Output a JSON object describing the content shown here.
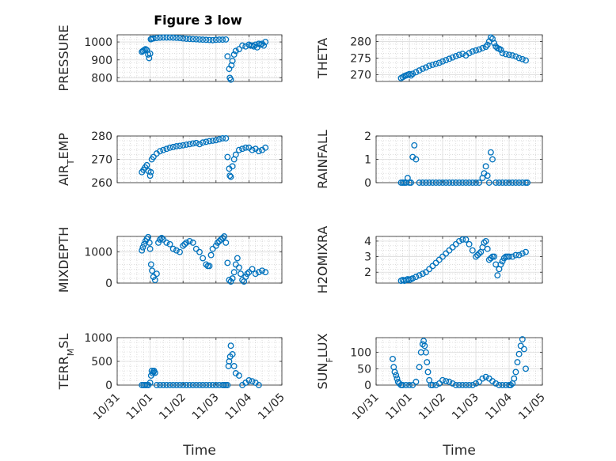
{
  "chart_data": [
    {
      "type": "scatter",
      "title": "Figure 3 low",
      "ylabel": "PRESSURE",
      "xlabel": "",
      "xlim": [
        0,
        5
      ],
      "ylim": [
        780,
        1040
      ],
      "yticks": [
        800,
        900,
        1000
      ],
      "ytick_labels": [
        "800",
        "900",
        "1000"
      ],
      "xticks": [
        0,
        1,
        2,
        3,
        4,
        5
      ],
      "grid": true,
      "x": [
        0.75,
        0.78,
        0.82,
        0.86,
        0.9,
        0.94,
        0.97,
        1.0,
        1.02,
        1.05,
        1.1,
        1.2,
        1.3,
        1.4,
        1.5,
        1.6,
        1.7,
        1.8,
        1.9,
        2.0,
        2.1,
        2.2,
        2.3,
        2.4,
        2.5,
        2.6,
        2.7,
        2.8,
        2.9,
        3.0,
        3.1,
        3.2,
        3.3,
        3.35,
        3.4,
        3.42,
        3.45,
        3.47,
        3.5,
        3.55,
        3.6,
        3.7,
        3.8,
        3.9,
        4.0,
        4.05,
        4.1,
        4.15,
        4.2,
        4.25,
        4.3,
        4.35,
        4.4,
        4.45,
        4.5
      ],
      "y": [
        945,
        950,
        955,
        960,
        955,
        930,
        910,
        935,
        1015,
        1018,
        1020,
        1022,
        1024,
        1025,
        1025,
        1025,
        1024,
        1023,
        1022,
        1020,
        1018,
        1017,
        1016,
        1015,
        1014,
        1013,
        1012,
        1011,
        1010,
        1012,
        1013,
        1013,
        1014,
        920,
        850,
        800,
        790,
        870,
        895,
        930,
        950,
        960,
        980,
        975,
        985,
        980,
        980,
        975,
        985,
        970,
        990,
        985,
        990,
        980,
        1000
      ]
    },
    {
      "type": "scatter",
      "title": "",
      "ylabel": "THETA",
      "xlabel": "",
      "xlim": [
        0,
        5
      ],
      "ylim": [
        268,
        282
      ],
      "yticks": [
        270,
        275,
        280
      ],
      "ytick_labels": [
        "270",
        "275",
        "280"
      ],
      "xticks": [
        0,
        1,
        2,
        3,
        4,
        5
      ],
      "grid": true,
      "x": [
        0.75,
        0.8,
        0.85,
        0.9,
        0.95,
        1.0,
        1.05,
        1.1,
        1.2,
        1.3,
        1.4,
        1.5,
        1.6,
        1.7,
        1.8,
        1.9,
        2.0,
        2.1,
        2.2,
        2.3,
        2.4,
        2.5,
        2.6,
        2.7,
        2.8,
        2.9,
        3.0,
        3.1,
        3.2,
        3.3,
        3.35,
        3.4,
        3.45,
        3.5,
        3.55,
        3.6,
        3.65,
        3.7,
        3.75,
        3.8,
        3.9,
        4.0,
        4.1,
        4.2,
        4.3,
        4.4,
        4.5
      ],
      "y": [
        269,
        269.3,
        269.6,
        269.8,
        270,
        270.2,
        269.8,
        270.3,
        270.8,
        271.3,
        271.8,
        272.2,
        272.7,
        273,
        273.3,
        273.6,
        274,
        274.4,
        274.8,
        275.2,
        275.6,
        276,
        276.3,
        275.8,
        276.5,
        277,
        277.3,
        277.6,
        278,
        278.4,
        279,
        280,
        281.2,
        280.8,
        279.5,
        278.5,
        278,
        277.8,
        277.5,
        276.5,
        276.2,
        276,
        275.8,
        275.5,
        275,
        274.7,
        274.3
      ]
    },
    {
      "type": "scatter",
      "title": "",
      "ylabel": "AIR_TEMP",
      "xlabel": "",
      "xlim": [
        0,
        5
      ],
      "ylim": [
        260,
        280
      ],
      "yticks": [
        260,
        270,
        280
      ],
      "ytick_labels": [
        "260",
        "270",
        "280"
      ],
      "xticks": [
        0,
        1,
        2,
        3,
        4,
        5
      ],
      "grid": true,
      "x": [
        0.75,
        0.8,
        0.85,
        0.9,
        0.95,
        1.0,
        1.02,
        1.05,
        1.1,
        1.2,
        1.3,
        1.4,
        1.5,
        1.6,
        1.7,
        1.8,
        1.9,
        2.0,
        2.1,
        2.2,
        2.3,
        2.4,
        2.5,
        2.6,
        2.7,
        2.8,
        2.9,
        3.0,
        3.1,
        3.2,
        3.3,
        3.35,
        3.4,
        3.42,
        3.45,
        3.5,
        3.55,
        3.6,
        3.7,
        3.8,
        3.9,
        4.0,
        4.1,
        4.2,
        4.3,
        4.4,
        4.5
      ],
      "y": [
        264.5,
        265.5,
        266.5,
        267.5,
        265,
        263,
        264.5,
        270,
        271,
        272.5,
        273.5,
        274,
        274.5,
        275,
        275.3,
        275.6,
        275.8,
        276,
        276.3,
        276.5,
        276.8,
        277,
        276.5,
        277.2,
        277.5,
        277.8,
        278,
        278.2,
        278.6,
        279,
        279,
        271,
        266,
        263,
        262.5,
        267,
        270,
        272,
        274,
        274.5,
        275,
        275,
        274,
        274.5,
        273.5,
        274,
        275
      ]
    },
    {
      "type": "scatter",
      "title": "",
      "ylabel": "RAINFALL",
      "xlabel": "",
      "xlim": [
        0,
        5
      ],
      "ylim": [
        0,
        2
      ],
      "yticks": [
        0,
        1,
        2
      ],
      "ytick_labels": [
        "0",
        "1",
        "2"
      ],
      "xticks": [
        0,
        1,
        2,
        3,
        4,
        5
      ],
      "grid": true,
      "x": [
        0.75,
        0.8,
        0.85,
        0.9,
        0.95,
        1.0,
        1.05,
        1.1,
        1.15,
        1.2,
        1.3,
        1.4,
        1.5,
        1.6,
        1.7,
        1.8,
        1.9,
        2.0,
        2.1,
        2.2,
        2.3,
        2.4,
        2.5,
        2.6,
        2.7,
        2.8,
        2.9,
        3.0,
        3.1,
        3.2,
        3.25,
        3.3,
        3.35,
        3.4,
        3.45,
        3.5,
        3.6,
        3.7,
        3.8,
        3.9,
        4.0,
        4.1,
        4.2,
        4.3,
        4.4,
        4.5,
        4.55
      ],
      "y": [
        0,
        0,
        0,
        0,
        0.2,
        0,
        0,
        1.1,
        1.6,
        1.0,
        0,
        0,
        0,
        0,
        0,
        0,
        0,
        0,
        0,
        0,
        0,
        0,
        0,
        0,
        0,
        0,
        0,
        0,
        0,
        0.2,
        0.4,
        0.7,
        0.3,
        0,
        1.3,
        1.0,
        0,
        0,
        0,
        0,
        0,
        0,
        0,
        0,
        0,
        0,
        0
      ]
    },
    {
      "type": "scatter",
      "title": "",
      "ylabel": "MIXDEPTH",
      "xlabel": "",
      "xlim": [
        0,
        5
      ],
      "ylim": [
        0,
        1500
      ],
      "yticks": [
        0,
        1000
      ],
      "ytick_labels": [
        "0",
        "1000"
      ],
      "xticks": [
        0,
        1,
        2,
        3,
        4,
        5
      ],
      "grid": true,
      "x": [
        0.75,
        0.78,
        0.82,
        0.86,
        0.9,
        0.94,
        0.98,
        1.0,
        1.03,
        1.06,
        1.1,
        1.15,
        1.2,
        1.25,
        1.3,
        1.35,
        1.4,
        1.5,
        1.6,
        1.7,
        1.8,
        1.9,
        2.0,
        2.05,
        2.1,
        2.2,
        2.3,
        2.4,
        2.5,
        2.6,
        2.7,
        2.75,
        2.8,
        2.85,
        2.9,
        3.0,
        3.05,
        3.1,
        3.15,
        3.2,
        3.25,
        3.3,
        3.35,
        3.4,
        3.45,
        3.5,
        3.55,
        3.6,
        3.65,
        3.7,
        3.75,
        3.8,
        3.85,
        3.9,
        3.95,
        4.0,
        4.1,
        4.2,
        4.3,
        4.4,
        4.5
      ],
      "y": [
        1050,
        1150,
        1250,
        1350,
        1420,
        1480,
        1300,
        1100,
        600,
        400,
        200,
        100,
        300,
        1300,
        1400,
        1450,
        1400,
        1300,
        1250,
        1100,
        1050,
        1000,
        1200,
        1250,
        1300,
        1350,
        1300,
        1100,
        1000,
        800,
        600,
        550,
        550,
        900,
        1100,
        1200,
        1300,
        1350,
        1400,
        1450,
        1500,
        1300,
        650,
        100,
        50,
        150,
        350,
        600,
        800,
        500,
        300,
        100,
        50,
        200,
        300,
        350,
        450,
        300,
        350,
        400,
        350
      ]
    },
    {
      "type": "scatter",
      "title": "",
      "ylabel": "H2OMIXRA",
      "xlabel": "",
      "xlim": [
        0,
        5
      ],
      "ylim": [
        1.3,
        4.3
      ],
      "yticks": [
        2,
        3,
        4
      ],
      "ytick_labels": [
        "2",
        "3",
        "4"
      ],
      "xticks": [
        0,
        1,
        2,
        3,
        4,
        5
      ],
      "grid": true,
      "x": [
        0.75,
        0.8,
        0.85,
        0.9,
        0.95,
        1.0,
        1.05,
        1.1,
        1.2,
        1.3,
        1.4,
        1.5,
        1.6,
        1.7,
        1.8,
        1.9,
        2.0,
        2.1,
        2.2,
        2.3,
        2.4,
        2.5,
        2.6,
        2.7,
        2.8,
        2.9,
        3.0,
        3.05,
        3.1,
        3.15,
        3.2,
        3.25,
        3.3,
        3.35,
        3.4,
        3.45,
        3.5,
        3.55,
        3.6,
        3.65,
        3.7,
        3.75,
        3.8,
        3.85,
        3.9,
        3.95,
        4.0,
        4.1,
        4.2,
        4.3,
        4.4,
        4.5
      ],
      "y": [
        1.45,
        1.5,
        1.45,
        1.5,
        1.55,
        1.5,
        1.55,
        1.6,
        1.7,
        1.8,
        1.9,
        2.0,
        2.2,
        2.4,
        2.6,
        2.8,
        3.0,
        3.2,
        3.4,
        3.6,
        3.8,
        4.0,
        4.1,
        4.1,
        3.8,
        3.4,
        3.0,
        3.1,
        3.2,
        3.3,
        3.6,
        3.9,
        4.0,
        3.5,
        2.8,
        2.9,
        3.0,
        3.0,
        2.5,
        1.8,
        2.2,
        2.5,
        2.7,
        2.9,
        3.0,
        3.0,
        3.0,
        3.0,
        3.1,
        3.1,
        3.2,
        3.3
      ]
    },
    {
      "type": "scatter",
      "title": "",
      "ylabel": "TERR_MSL",
      "xlabel": "Time",
      "xlim": [
        0,
        5
      ],
      "ylim": [
        0,
        1000
      ],
      "yticks": [
        0,
        500,
        1000
      ],
      "ytick_labels": [
        "0",
        "500",
        "1000"
      ],
      "xticks": [
        0,
        1,
        2,
        3,
        4,
        5
      ],
      "xtick_labels": [
        "10/31",
        "11/01",
        "11/02",
        "11/03",
        "11/04",
        "11/05"
      ],
      "grid": true,
      "x": [
        0.75,
        0.8,
        0.85,
        0.9,
        0.95,
        1.0,
        1.03,
        1.05,
        1.08,
        1.1,
        1.12,
        1.15,
        1.2,
        1.3,
        1.4,
        1.5,
        1.6,
        1.7,
        1.8,
        1.9,
        2.0,
        2.1,
        2.2,
        2.3,
        2.4,
        2.5,
        2.6,
        2.7,
        2.8,
        2.9,
        3.0,
        3.1,
        3.2,
        3.25,
        3.3,
        3.35,
        3.38,
        3.4,
        3.43,
        3.45,
        3.5,
        3.55,
        3.6,
        3.7,
        3.8,
        3.9,
        4.0,
        4.1,
        4.2,
        4.3
      ],
      "y": [
        0,
        0,
        0,
        0,
        0,
        50,
        200,
        300,
        250,
        280,
        300,
        260,
        0,
        0,
        0,
        0,
        0,
        0,
        0,
        0,
        0,
        0,
        0,
        0,
        0,
        0,
        0,
        0,
        0,
        0,
        0,
        0,
        0,
        0,
        0,
        0,
        400,
        500,
        600,
        830,
        650,
        400,
        250,
        200,
        0,
        50,
        100,
        80,
        50,
        0
      ]
    },
    {
      "type": "scatter",
      "title": "",
      "ylabel": "SUN_FLUX",
      "xlabel": "Time",
      "xlim": [
        0,
        5
      ],
      "ylim": [
        0,
        145
      ],
      "yticks": [
        0,
        50,
        100
      ],
      "ytick_labels": [
        "0",
        "50",
        "100"
      ],
      "xticks": [
        0,
        1,
        2,
        3,
        4,
        5
      ],
      "xtick_labels": [
        "10/31",
        "11/01",
        "11/02",
        "11/03",
        "11/04",
        "11/05"
      ],
      "grid": true,
      "x": [
        0.5,
        0.53,
        0.56,
        0.6,
        0.63,
        0.66,
        0.7,
        0.75,
        0.8,
        0.9,
        1.0,
        1.1,
        1.2,
        1.3,
        1.35,
        1.4,
        1.43,
        1.46,
        1.5,
        1.53,
        1.56,
        1.6,
        1.65,
        1.7,
        1.8,
        1.9,
        2.0,
        2.1,
        2.2,
        2.3,
        2.4,
        2.5,
        2.6,
        2.7,
        2.8,
        2.9,
        3.0,
        3.1,
        3.2,
        3.3,
        3.4,
        3.5,
        3.6,
        3.7,
        3.8,
        3.9,
        4.0,
        4.05,
        4.1,
        4.15,
        4.2,
        4.25,
        4.3,
        4.35,
        4.4,
        4.45,
        4.5
      ],
      "y": [
        80,
        55,
        40,
        30,
        20,
        10,
        5,
        0,
        0,
        0,
        0,
        0,
        10,
        55,
        100,
        125,
        135,
        120,
        100,
        70,
        40,
        15,
        0,
        0,
        0,
        5,
        15,
        12,
        10,
        5,
        0,
        0,
        0,
        0,
        0,
        0,
        5,
        10,
        20,
        25,
        20,
        12,
        5,
        0,
        0,
        0,
        0,
        0,
        5,
        20,
        40,
        70,
        95,
        120,
        140,
        110,
        50
      ]
    }
  ]
}
